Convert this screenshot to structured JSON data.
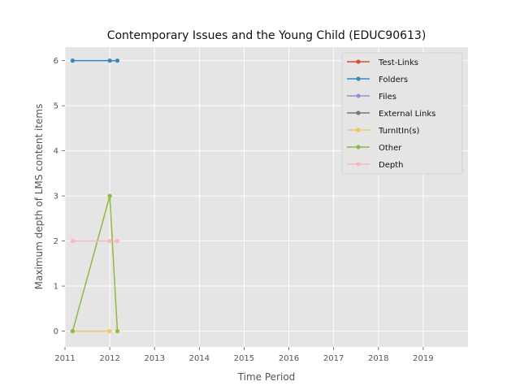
{
  "chart_data": {
    "type": "line",
    "title": "Contemporary Issues and the Young Child (EDUC90613)",
    "xlabel": "Time Period",
    "ylabel": "Maximum depth of LMS content items",
    "xlim": [
      2011,
      2020
    ],
    "ylim": [
      -0.35,
      6.3
    ],
    "x_ticks": [
      "2011",
      "2012",
      "2013",
      "2014",
      "2015",
      "2016",
      "2017",
      "2018",
      "2019"
    ],
    "y_ticks": [
      "0",
      "1",
      "2",
      "3",
      "4",
      "5",
      "6"
    ],
    "grid": true,
    "legend_position": "top-right",
    "series": [
      {
        "name": "Test-Links",
        "color": "#E24A33",
        "points": []
      },
      {
        "name": "Folders",
        "color": "#348ABD",
        "points": [
          [
            2011.17,
            6
          ],
          [
            2012.0,
            6
          ],
          [
            2012.17,
            6
          ]
        ]
      },
      {
        "name": "Files",
        "color": "#988ED5",
        "points": []
      },
      {
        "name": "External Links",
        "color": "#777777",
        "points": []
      },
      {
        "name": "TurnItIn(s)",
        "color": "#FBC15E",
        "points": [
          [
            2011.17,
            0
          ],
          [
            2012.0,
            0
          ]
        ]
      },
      {
        "name": "Other",
        "color": "#8EBA42",
        "points": [
          [
            2011.17,
            0
          ],
          [
            2012.0,
            3
          ],
          [
            2012.17,
            0
          ]
        ]
      },
      {
        "name": "Depth",
        "color": "#FFB5B8",
        "points": [
          [
            2011.17,
            2
          ],
          [
            2012.0,
            2
          ],
          [
            2012.17,
            2
          ]
        ]
      }
    ]
  }
}
